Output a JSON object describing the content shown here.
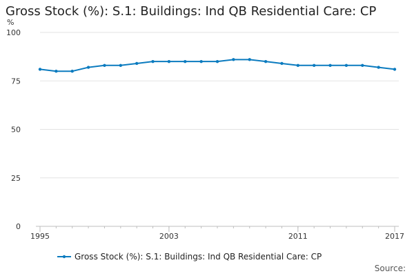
{
  "chart_data": {
    "type": "line",
    "title": "Gross Stock (%): S.1: Buildings: Ind QB Residential Care: CP",
    "ylabel": "%",
    "xlabel": "",
    "ylim": [
      0,
      100
    ],
    "yticks": [
      0,
      25,
      50,
      75,
      100
    ],
    "xticks": [
      1995,
      2003,
      2011,
      2017
    ],
    "xlim": [
      1995,
      2017
    ],
    "grid": "horizontal",
    "legend_position": "bottom",
    "series": [
      {
        "name": "Gross Stock (%): S.1: Buildings: Ind QB Residential Care: CP",
        "color": "#0b7bbf",
        "x": [
          1995,
          1996,
          1997,
          1998,
          1999,
          2000,
          2001,
          2002,
          2003,
          2004,
          2005,
          2006,
          2007,
          2008,
          2009,
          2010,
          2011,
          2012,
          2013,
          2014,
          2015,
          2016,
          2017
        ],
        "values": [
          81,
          80,
          80,
          82,
          83,
          83,
          84,
          85,
          85,
          85,
          85,
          85,
          86,
          86,
          85,
          84,
          83,
          83,
          83,
          83,
          83,
          82,
          81
        ]
      }
    ]
  },
  "footer": {
    "source_label": "Source:"
  }
}
